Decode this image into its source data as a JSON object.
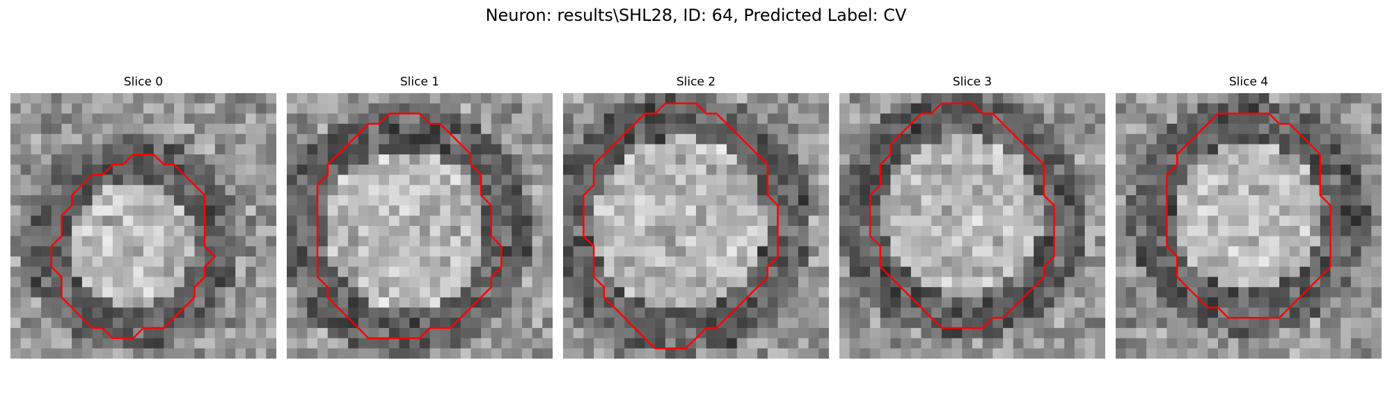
{
  "figure": {
    "title": "Neuron: results\\SHL28, ID: 64, Predicted Label: CV",
    "contour_color": "#ff0000"
  },
  "panels": [
    {
      "title": "Slice 0",
      "contour": [
        [
          13,
          6
        ],
        [
          14,
          6
        ],
        [
          15,
          7
        ],
        [
          16,
          7
        ],
        [
          17,
          8
        ],
        [
          18,
          9
        ],
        [
          19,
          10
        ],
        [
          19,
          11
        ],
        [
          19,
          12
        ],
        [
          19,
          13
        ],
        [
          19,
          14
        ],
        [
          19,
          15
        ],
        [
          20,
          16
        ],
        [
          19,
          17
        ],
        [
          19,
          18
        ],
        [
          18,
          19
        ],
        [
          18,
          20
        ],
        [
          17,
          21
        ],
        [
          16,
          22
        ],
        [
          15,
          23
        ],
        [
          13,
          23
        ],
        [
          12,
          24
        ],
        [
          11,
          24
        ],
        [
          10,
          24
        ],
        [
          9,
          23
        ],
        [
          8,
          23
        ],
        [
          7,
          22
        ],
        [
          6,
          21
        ],
        [
          5,
          20
        ],
        [
          5,
          19
        ],
        [
          5,
          18
        ],
        [
          4,
          17
        ],
        [
          4,
          16
        ],
        [
          4,
          15
        ],
        [
          5,
          14
        ],
        [
          5,
          13
        ],
        [
          5,
          12
        ],
        [
          6,
          11
        ],
        [
          6,
          10
        ],
        [
          7,
          9
        ],
        [
          8,
          8
        ],
        [
          9,
          8
        ],
        [
          10,
          7
        ],
        [
          11,
          7
        ],
        [
          12,
          6
        ]
      ]
    },
    {
      "title": "Slice 1",
      "contour": [
        [
          11,
          2
        ],
        [
          12,
          2
        ],
        [
          13,
          2
        ],
        [
          14,
          3
        ],
        [
          15,
          3
        ],
        [
          16,
          4
        ],
        [
          17,
          5
        ],
        [
          18,
          6
        ],
        [
          18,
          7
        ],
        [
          19,
          8
        ],
        [
          19,
          9
        ],
        [
          19,
          10
        ],
        [
          20,
          11
        ],
        [
          20,
          12
        ],
        [
          20,
          13
        ],
        [
          20,
          14
        ],
        [
          21,
          15
        ],
        [
          21,
          16
        ],
        [
          21,
          17
        ],
        [
          20,
          18
        ],
        [
          20,
          19
        ],
        [
          19,
          20
        ],
        [
          18,
          21
        ],
        [
          17,
          22
        ],
        [
          16,
          23
        ],
        [
          15,
          23
        ],
        [
          14,
          23
        ],
        [
          13,
          24
        ],
        [
          12,
          24
        ],
        [
          11,
          24
        ],
        [
          10,
          24
        ],
        [
          9,
          24
        ],
        [
          8,
          24
        ],
        [
          7,
          23
        ],
        [
          6,
          22
        ],
        [
          5,
          21
        ],
        [
          4,
          20
        ],
        [
          4,
          19
        ],
        [
          3,
          18
        ],
        [
          3,
          17
        ],
        [
          3,
          16
        ],
        [
          3,
          15
        ],
        [
          3,
          14
        ],
        [
          3,
          13
        ],
        [
          3,
          12
        ],
        [
          3,
          11
        ],
        [
          3,
          10
        ],
        [
          3,
          9
        ],
        [
          4,
          8
        ],
        [
          4,
          7
        ],
        [
          5,
          6
        ],
        [
          6,
          5
        ],
        [
          7,
          4
        ],
        [
          8,
          3
        ],
        [
          9,
          3
        ],
        [
          10,
          2
        ]
      ]
    },
    {
      "title": "Slice 2",
      "contour": [
        [
          11,
          1
        ],
        [
          12,
          1
        ],
        [
          13,
          1
        ],
        [
          14,
          2
        ],
        [
          15,
          2
        ],
        [
          16,
          3
        ],
        [
          17,
          4
        ],
        [
          18,
          5
        ],
        [
          19,
          6
        ],
        [
          20,
          7
        ],
        [
          20,
          8
        ],
        [
          20,
          9
        ],
        [
          20,
          10
        ],
        [
          21,
          11
        ],
        [
          21,
          12
        ],
        [
          21,
          13
        ],
        [
          21,
          14
        ],
        [
          21,
          15
        ],
        [
          21,
          16
        ],
        [
          20,
          17
        ],
        [
          20,
          18
        ],
        [
          19,
          19
        ],
        [
          18,
          20
        ],
        [
          17,
          21
        ],
        [
          16,
          22
        ],
        [
          15,
          23
        ],
        [
          14,
          23
        ],
        [
          13,
          24
        ],
        [
          12,
          25
        ],
        [
          11,
          25
        ],
        [
          10,
          25
        ],
        [
          9,
          25
        ],
        [
          8,
          24
        ],
        [
          7,
          23
        ],
        [
          6,
          22
        ],
        [
          5,
          21
        ],
        [
          4,
          20
        ],
        [
          4,
          19
        ],
        [
          3,
          18
        ],
        [
          3,
          17
        ],
        [
          3,
          16
        ],
        [
          3,
          15
        ],
        [
          2,
          14
        ],
        [
          2,
          13
        ],
        [
          2,
          12
        ],
        [
          2,
          11
        ],
        [
          2,
          10
        ],
        [
          3,
          9
        ],
        [
          3,
          8
        ],
        [
          3,
          7
        ],
        [
          4,
          6
        ],
        [
          5,
          5
        ],
        [
          6,
          4
        ],
        [
          7,
          3
        ],
        [
          8,
          2
        ],
        [
          9,
          2
        ],
        [
          10,
          1
        ]
      ]
    },
    {
      "title": "Slice 3",
      "contour": [
        [
          10,
          1
        ],
        [
          11,
          1
        ],
        [
          12,
          1
        ],
        [
          13,
          1
        ],
        [
          14,
          2
        ],
        [
          15,
          2
        ],
        [
          16,
          3
        ],
        [
          17,
          4
        ],
        [
          18,
          5
        ],
        [
          19,
          6
        ],
        [
          20,
          7
        ],
        [
          20,
          8
        ],
        [
          20,
          9
        ],
        [
          20,
          10
        ],
        [
          21,
          11
        ],
        [
          21,
          12
        ],
        [
          21,
          13
        ],
        [
          21,
          14
        ],
        [
          21,
          15
        ],
        [
          21,
          16
        ],
        [
          20,
          17
        ],
        [
          20,
          18
        ],
        [
          19,
          19
        ],
        [
          18,
          20
        ],
        [
          17,
          21
        ],
        [
          16,
          22
        ],
        [
          15,
          22
        ],
        [
          14,
          23
        ],
        [
          13,
          23
        ],
        [
          12,
          23
        ],
        [
          11,
          23
        ],
        [
          10,
          23
        ],
        [
          9,
          22
        ],
        [
          8,
          21
        ],
        [
          7,
          20
        ],
        [
          6,
          19
        ],
        [
          5,
          18
        ],
        [
          4,
          17
        ],
        [
          4,
          16
        ],
        [
          4,
          15
        ],
        [
          3,
          14
        ],
        [
          3,
          13
        ],
        [
          3,
          12
        ],
        [
          3,
          11
        ],
        [
          3,
          10
        ],
        [
          4,
          9
        ],
        [
          4,
          8
        ],
        [
          4,
          7
        ],
        [
          5,
          6
        ],
        [
          5,
          5
        ],
        [
          6,
          4
        ],
        [
          7,
          3
        ],
        [
          8,
          2
        ],
        [
          9,
          2
        ]
      ]
    },
    {
      "title": "Slice 4",
      "contour": [
        [
          10,
          2
        ],
        [
          11,
          2
        ],
        [
          12,
          2
        ],
        [
          13,
          2
        ],
        [
          14,
          2
        ],
        [
          15,
          2
        ],
        [
          16,
          3
        ],
        [
          17,
          3
        ],
        [
          18,
          4
        ],
        [
          19,
          5
        ],
        [
          20,
          6
        ],
        [
          20,
          7
        ],
        [
          20,
          8
        ],
        [
          20,
          9
        ],
        [
          20,
          10
        ],
        [
          21,
          11
        ],
        [
          21,
          12
        ],
        [
          21,
          13
        ],
        [
          21,
          14
        ],
        [
          21,
          15
        ],
        [
          21,
          16
        ],
        [
          21,
          17
        ],
        [
          20,
          18
        ],
        [
          19,
          19
        ],
        [
          18,
          20
        ],
        [
          17,
          21
        ],
        [
          16,
          22
        ],
        [
          15,
          22
        ],
        [
          14,
          22
        ],
        [
          13,
          22
        ],
        [
          12,
          22
        ],
        [
          11,
          22
        ],
        [
          10,
          21
        ],
        [
          9,
          21
        ],
        [
          8,
          20
        ],
        [
          7,
          19
        ],
        [
          6,
          18
        ],
        [
          6,
          17
        ],
        [
          6,
          16
        ],
        [
          5,
          15
        ],
        [
          5,
          14
        ],
        [
          5,
          13
        ],
        [
          5,
          12
        ],
        [
          5,
          11
        ],
        [
          5,
          10
        ],
        [
          5,
          9
        ],
        [
          5,
          8
        ],
        [
          6,
          7
        ],
        [
          6,
          6
        ],
        [
          7,
          5
        ],
        [
          8,
          4
        ],
        [
          9,
          3
        ]
      ]
    }
  ]
}
